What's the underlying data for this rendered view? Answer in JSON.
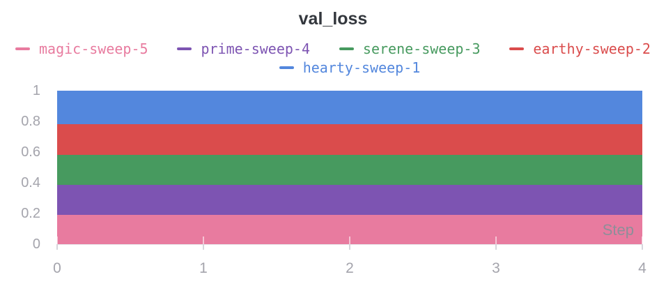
{
  "title": "val_loss",
  "legend": {
    "rows": [
      {
        "items": [
          {
            "label": "magic-sweep-5",
            "color": "#E87B9F"
          },
          {
            "label": "prime-sweep-4",
            "color": "#7D54B2"
          },
          {
            "label": "serene-sweep-3",
            "color": "#479A5F"
          },
          {
            "label": "earthy-sweep-2",
            "color": "#DA4C4C"
          }
        ]
      },
      {
        "items": [
          {
            "label": "hearty-sweep-1",
            "color": "#5387DD"
          }
        ]
      }
    ]
  },
  "chart_data": {
    "type": "area",
    "stacked": true,
    "title": "val_loss",
    "xlabel": "Step",
    "ylabel": "",
    "x": [
      0,
      1,
      2,
      3,
      4
    ],
    "xlim": [
      0,
      4
    ],
    "ylim": [
      0,
      1
    ],
    "x_tick_labels": [
      "0",
      "1",
      "2",
      "3",
      "4"
    ],
    "x_tick_values": [
      0,
      1,
      2,
      3,
      4
    ],
    "y_tick_labels": [
      "0",
      "0.2",
      "0.4",
      "0.6",
      "0.8",
      "1"
    ],
    "y_tick_values": [
      0,
      0.2,
      0.4,
      0.6,
      0.8,
      1
    ],
    "grid": false,
    "legend_position": "top",
    "series": [
      {
        "name": "magic-sweep-5",
        "color": "#E87B9F",
        "values": [
          0.19,
          0.19,
          0.19,
          0.19,
          0.19
        ]
      },
      {
        "name": "prime-sweep-4",
        "color": "#7D54B2",
        "values": [
          0.195,
          0.195,
          0.195,
          0.195,
          0.195
        ]
      },
      {
        "name": "serene-sweep-3",
        "color": "#479A5F",
        "values": [
          0.195,
          0.195,
          0.195,
          0.195,
          0.195
        ]
      },
      {
        "name": "earthy-sweep-2",
        "color": "#DA4C4C",
        "values": [
          0.2,
          0.2,
          0.2,
          0.2,
          0.2
        ]
      },
      {
        "name": "hearty-sweep-1",
        "color": "#5387DD",
        "values": [
          0.22,
          0.22,
          0.22,
          0.22,
          0.22
        ]
      }
    ],
    "stack_order": "bottom-to-top"
  }
}
